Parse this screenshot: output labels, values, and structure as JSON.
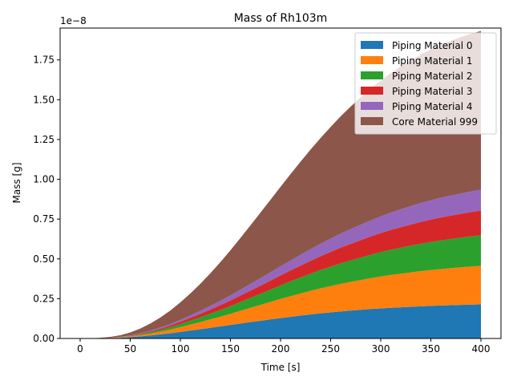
{
  "chart_data": {
    "type": "area",
    "stacked": true,
    "title": "Mass of Rh103m",
    "xlabel": "Time [s]",
    "ylabel": "Mass [g]",
    "y_offset_label": "1e−8",
    "y_scale_exponent": -8,
    "xlim": [
      -20,
      420
    ],
    "ylim": [
      0,
      1.95e-08
    ],
    "x_ticks": [
      0,
      50,
      100,
      150,
      200,
      250,
      300,
      350,
      400
    ],
    "x_tick_labels": [
      "0",
      "50",
      "100",
      "150",
      "200",
      "250",
      "300",
      "350",
      "400"
    ],
    "y_ticks": [
      0,
      2.5e-09,
      5e-09,
      7.5e-09,
      1e-08,
      1.25e-08,
      1.5e-08,
      1.75e-08
    ],
    "y_tick_labels": [
      "0.00",
      "0.25",
      "0.50",
      "0.75",
      "1.00",
      "1.25",
      "1.50",
      "1.75"
    ],
    "legend_position": "top-right",
    "grid": false,
    "x": [
      0,
      10,
      20,
      30,
      40,
      50,
      60,
      70,
      80,
      90,
      100,
      110,
      120,
      130,
      140,
      150,
      160,
      170,
      180,
      190,
      200,
      210,
      220,
      230,
      240,
      250,
      260,
      270,
      280,
      290,
      300,
      310,
      320,
      330,
      340,
      350,
      360,
      370,
      380,
      390,
      400
    ],
    "series": [
      {
        "name": "Piping Material 0",
        "color": "#1f77b4",
        "values": [
          0,
          2e-12,
          8e-12,
          2e-11,
          4e-11,
          8e-11,
          1.3e-10,
          1.9e-10,
          2.6e-10,
          3.3e-10,
          4.1e-10,
          5e-10,
          5.8e-10,
          6.7e-10,
          7.6e-10,
          8.5e-10,
          9.4e-10,
          1.03e-09,
          1.11e-09,
          1.2e-09,
          1.28e-09,
          1.36e-09,
          1.44e-09,
          1.51e-09,
          1.58e-09,
          1.64e-09,
          1.7e-09,
          1.75e-09,
          1.8e-09,
          1.85e-09,
          1.89e-09,
          1.93e-09,
          1.96e-09,
          1.99e-09,
          2.02e-09,
          2.05e-09,
          2.07e-09,
          2.09e-09,
          2.11e-09,
          2.13e-09,
          2.14e-09
        ]
      },
      {
        "name": "Piping Material 1",
        "color": "#ff7f0e",
        "values": [
          0,
          1e-12,
          5e-12,
          1.2e-11,
          2.5e-11,
          5e-11,
          8e-11,
          1.2e-10,
          1.7e-10,
          2.3e-10,
          3e-10,
          3.7e-10,
          4.5e-10,
          5.3e-10,
          6.1e-10,
          7e-10,
          8e-10,
          9e-10,
          1e-09,
          1.1e-09,
          1.2e-09,
          1.3e-09,
          1.39e-09,
          1.48e-09,
          1.57e-09,
          1.65e-09,
          1.73e-09,
          1.8e-09,
          1.87e-09,
          1.94e-09,
          2e-09,
          2.06e-09,
          2.11e-09,
          2.16e-09,
          2.21e-09,
          2.25e-09,
          2.29e-09,
          2.33e-09,
          2.36e-09,
          2.39e-09,
          2.42e-09
        ]
      },
      {
        "name": "Piping Material 2",
        "color": "#2ca02c",
        "values": [
          0,
          1e-12,
          3e-12,
          8e-12,
          1.5e-11,
          3e-11,
          5e-11,
          8e-11,
          1.1e-10,
          1.5e-10,
          2e-10,
          2.5e-10,
          3e-10,
          3.6e-10,
          4.2e-10,
          4.8e-10,
          5.5e-10,
          6.2e-10,
          6.9e-10,
          7.7e-10,
          8.5e-10,
          9.3e-10,
          1e-09,
          1.08e-09,
          1.15e-09,
          1.22e-09,
          1.29e-09,
          1.35e-09,
          1.41e-09,
          1.47e-09,
          1.53e-09,
          1.58e-09,
          1.63e-09,
          1.68e-09,
          1.72e-09,
          1.76e-09,
          1.8e-09,
          1.83e-09,
          1.86e-09,
          1.89e-09,
          1.92e-09
        ]
      },
      {
        "name": "Piping Material 3",
        "color": "#d62728",
        "values": [
          0,
          1e-12,
          2e-12,
          6e-12,
          1e-11,
          2e-11,
          3.5e-11,
          5.5e-11,
          8e-11,
          1.1e-10,
          1.4e-10,
          1.8e-10,
          2.2e-10,
          2.6e-10,
          3.1e-10,
          3.6e-10,
          4.1e-10,
          4.6e-10,
          5.2e-10,
          5.7e-10,
          6.3e-10,
          6.9e-10,
          7.5e-10,
          8.1e-10,
          8.7e-10,
          9.3e-10,
          9.9e-10,
          1.04e-09,
          1.1e-09,
          1.15e-09,
          1.2e-09,
          1.25e-09,
          1.29e-09,
          1.33e-09,
          1.37e-09,
          1.41e-09,
          1.44e-09,
          1.47e-09,
          1.5e-09,
          1.53e-09,
          1.55e-09
        ]
      },
      {
        "name": "Piping Material 4",
        "color": "#9467bd",
        "values": [
          0,
          1e-12,
          2e-12,
          5e-12,
          1e-11,
          1.8e-11,
          3e-11,
          4.5e-11,
          6.5e-11,
          9e-11,
          1.2e-10,
          1.5e-10,
          1.9e-10,
          2.3e-10,
          2.7e-10,
          3.2e-10,
          3.7e-10,
          4.2e-10,
          4.7e-10,
          5.2e-10,
          5.7e-10,
          6.2e-10,
          6.8e-10,
          7.3e-10,
          7.8e-10,
          8.3e-10,
          8.8e-10,
          9.3e-10,
          9.7e-10,
          1.01e-09,
          1.05e-09,
          1.09e-09,
          1.12e-09,
          1.16e-09,
          1.19e-09,
          1.21e-09,
          1.24e-09,
          1.26e-09,
          1.28e-09,
          1.3e-09,
          1.32e-09
        ]
      },
      {
        "name": "Core Material 999",
        "color": "#8c564b",
        "values": [
          0,
          5e-12,
          2e-11,
          5e-11,
          1e-10,
          1.8e-10,
          3e-10,
          4.5e-10,
          6.3e-10,
          8.5e-10,
          1.1e-09,
          1.38e-09,
          1.7e-09,
          2.05e-09,
          2.43e-09,
          2.83e-09,
          3.25e-09,
          3.68e-09,
          4.12e-09,
          4.56e-09,
          5e-09,
          5.43e-09,
          5.85e-09,
          6.26e-09,
          6.65e-09,
          7.02e-09,
          7.37e-09,
          7.7e-09,
          8e-09,
          8.28e-09,
          8.53e-09,
          8.76e-09,
          8.97e-09,
          9.16e-09,
          9.33e-09,
          9.48e-09,
          9.61e-09,
          9.72e-09,
          9.82e-09,
          9.9e-09,
          9.97e-09
        ]
      }
    ]
  }
}
